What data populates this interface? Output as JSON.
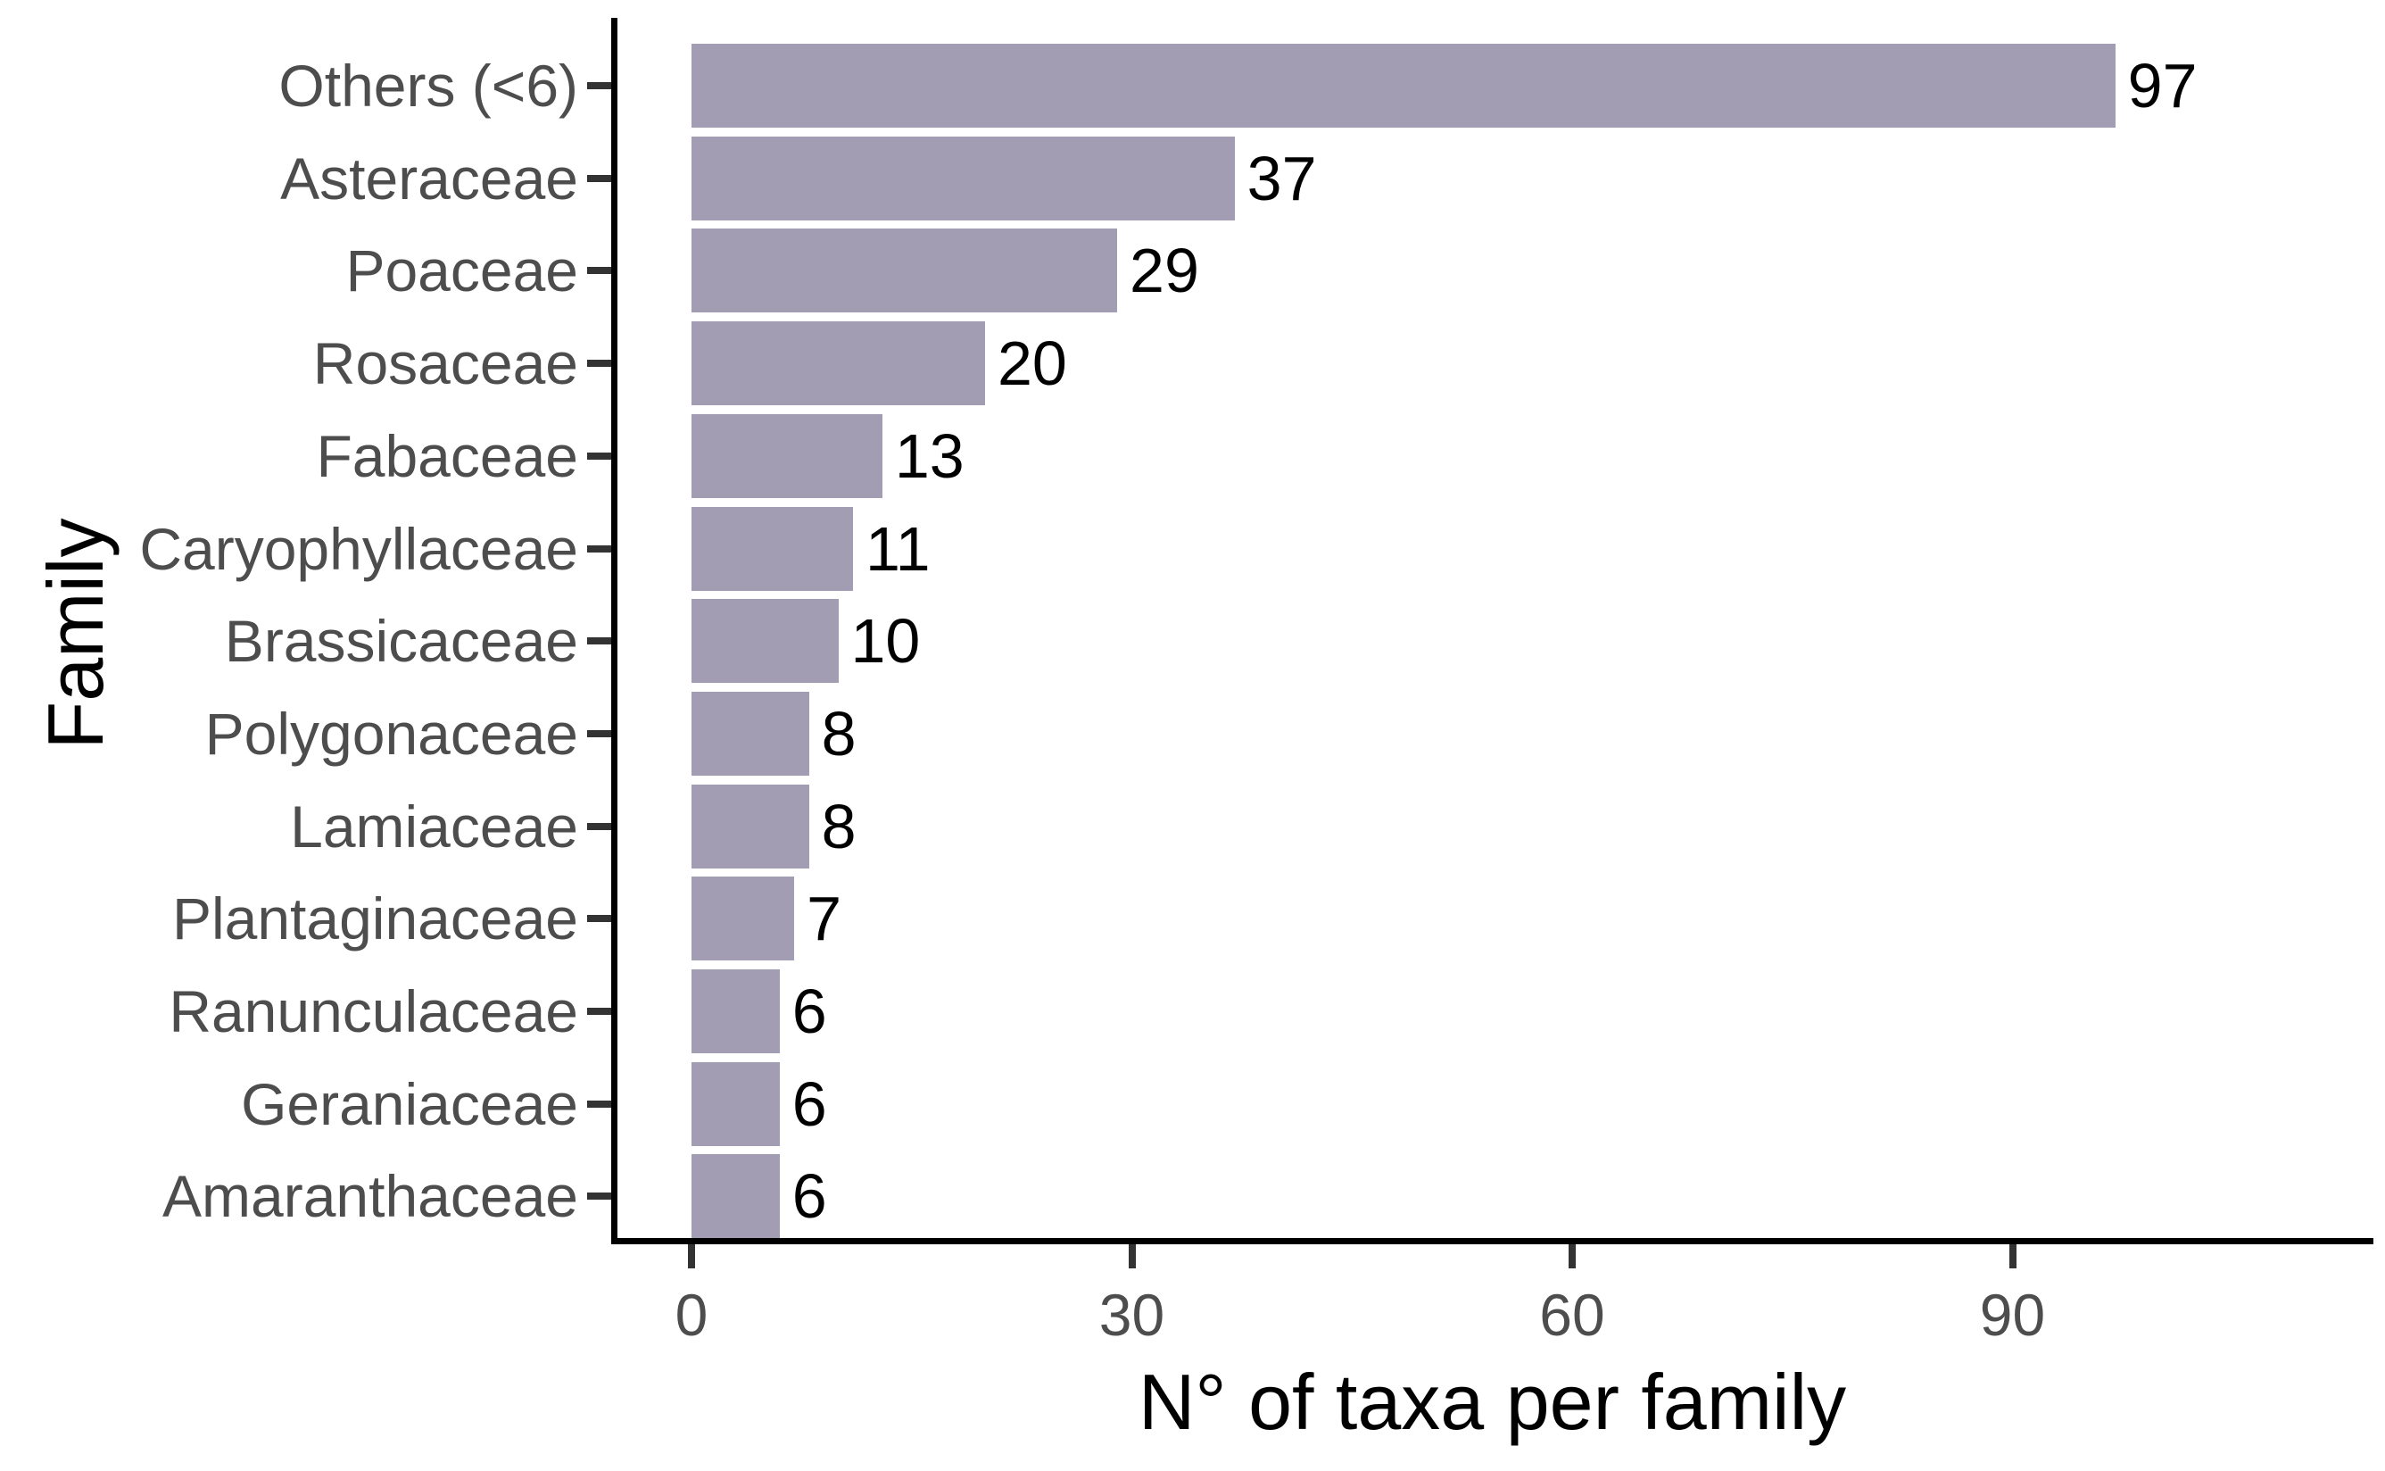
{
  "chart_data": {
    "type": "bar",
    "orientation": "horizontal",
    "xlabel": "N° of taxa per family",
    "ylabel": "Family",
    "categories": [
      "Others (<6)",
      "Asteraceae",
      "Poaceae",
      "Rosaceae",
      "Fabaceae",
      "Caryophyllaceae",
      "Brassicaceae",
      "Polygonaceae",
      "Lamiaceae",
      "Plantaginaceae",
      "Ranunculaceae",
      "Geraniaceae",
      "Amaranthaceae"
    ],
    "values": [
      97,
      37,
      29,
      20,
      13,
      11,
      10,
      8,
      8,
      7,
      6,
      6,
      6
    ],
    "data_labels": [
      "97",
      "37",
      "29",
      "20",
      "13",
      "11",
      "10",
      "8",
      "8",
      "7",
      "6",
      "6",
      "6"
    ],
    "x_ticks": [
      "0",
      "30",
      "60",
      "90"
    ],
    "x_tick_values": [
      0,
      30,
      60,
      90
    ],
    "xlim": [
      0,
      114
    ],
    "grid": false,
    "legend": false,
    "bar_color": "#a29db3",
    "axis_text_color": "#4d4d4d",
    "data_label_color": "#000000",
    "axis_line_color": "#000000",
    "background_color": "#ffffff"
  }
}
